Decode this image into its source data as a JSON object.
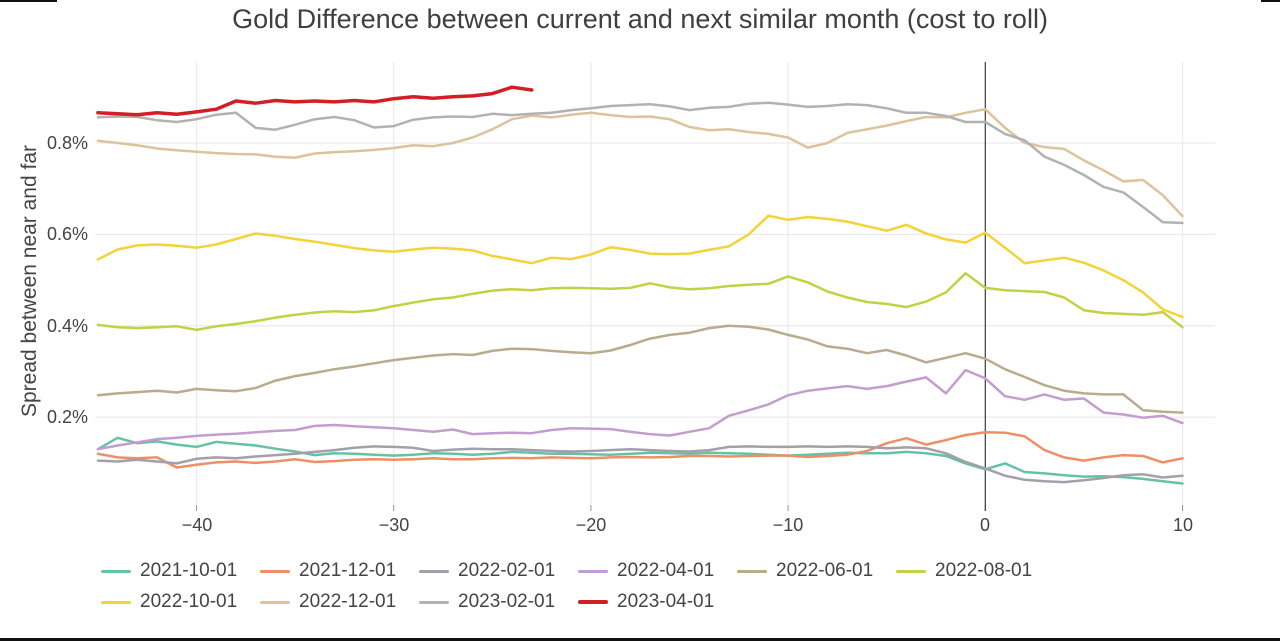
{
  "chart_data": {
    "type": "line",
    "title": "Gold Difference between current and next similar month (cost to roll)",
    "ylabel": "Spread between near and far",
    "xlabel": "",
    "grid": true,
    "legend_position": "bottom",
    "zero_line_x": 0,
    "x_step": 1,
    "x_axis": {
      "ticks": [
        -40,
        -30,
        -20,
        -10,
        0,
        10
      ],
      "labels": [
        "−40",
        "−30",
        "−20",
        "−10",
        "0",
        "10"
      ],
      "range": [
        -45.3,
        11.7
      ]
    },
    "y_axis": {
      "ticks": [
        0.2,
        0.4,
        0.6,
        0.8
      ],
      "labels": [
        "0.2%",
        "0.4%",
        "0.6%",
        "0.8%"
      ],
      "range_pct": [
        0.0,
        0.97
      ]
    },
    "colors": {
      "grid": "#ececec",
      "zero_line": "#3a3a3a",
      "text": "#444444",
      "title": "#3f3f3f"
    },
    "series": [
      {
        "name": "2021-10-01",
        "color": "#66c2a5",
        "width": 2.5,
        "x_start": -45,
        "values": [
          0.13,
          0.155,
          0.143,
          0.147,
          0.14,
          0.135,
          0.146,
          0.142,
          0.138,
          0.131,
          0.125,
          0.117,
          0.121,
          0.12,
          0.118,
          0.116,
          0.118,
          0.121,
          0.12,
          0.118,
          0.12,
          0.124,
          0.122,
          0.12,
          0.12,
          0.119,
          0.118,
          0.12,
          0.122,
          0.121,
          0.12,
          0.122,
          0.121,
          0.12,
          0.118,
          0.116,
          0.118,
          0.12,
          0.122,
          0.121,
          0.121,
          0.124,
          0.121,
          0.115,
          0.099,
          0.086,
          0.099,
          0.08,
          0.077,
          0.073,
          0.07,
          0.071,
          0.069,
          0.065,
          0.06,
          0.055
        ]
      },
      {
        "name": "2021-12-01",
        "color": "#ee9066",
        "width": 2.5,
        "x_start": -45,
        "values": [
          0.12,
          0.112,
          0.11,
          0.112,
          0.09,
          0.096,
          0.101,
          0.103,
          0.1,
          0.103,
          0.108,
          0.102,
          0.104,
          0.107,
          0.108,
          0.107,
          0.108,
          0.11,
          0.108,
          0.108,
          0.11,
          0.111,
          0.11,
          0.112,
          0.111,
          0.11,
          0.112,
          0.113,
          0.112,
          0.113,
          0.115,
          0.115,
          0.114,
          0.115,
          0.116,
          0.116,
          0.113,
          0.115,
          0.118,
          0.126,
          0.143,
          0.154,
          0.14,
          0.15,
          0.161,
          0.167,
          0.166,
          0.158,
          0.128,
          0.112,
          0.105,
          0.112,
          0.117,
          0.115,
          0.101,
          0.11
        ]
      },
      {
        "name": "2022-02-01",
        "color": "#a39fab",
        "width": 2.5,
        "x_start": -45,
        "values": [
          0.105,
          0.103,
          0.107,
          0.103,
          0.099,
          0.109,
          0.112,
          0.11,
          0.114,
          0.117,
          0.12,
          0.124,
          0.128,
          0.133,
          0.136,
          0.135,
          0.133,
          0.126,
          0.129,
          0.131,
          0.13,
          0.13,
          0.128,
          0.126,
          0.125,
          0.126,
          0.128,
          0.13,
          0.128,
          0.126,
          0.125,
          0.128,
          0.135,
          0.136,
          0.135,
          0.135,
          0.136,
          0.135,
          0.136,
          0.135,
          0.132,
          0.134,
          0.132,
          0.121,
          0.102,
          0.088,
          0.072,
          0.063,
          0.06,
          0.058,
          0.062,
          0.067,
          0.073,
          0.075,
          0.068,
          0.072
        ]
      },
      {
        "name": "2022-04-01",
        "color": "#c49dcf",
        "width": 2.5,
        "x_start": -45,
        "values": [
          0.13,
          0.138,
          0.145,
          0.152,
          0.155,
          0.159,
          0.162,
          0.164,
          0.167,
          0.17,
          0.172,
          0.181,
          0.183,
          0.18,
          0.178,
          0.176,
          0.172,
          0.168,
          0.173,
          0.163,
          0.165,
          0.166,
          0.165,
          0.172,
          0.176,
          0.175,
          0.174,
          0.168,
          0.163,
          0.16,
          0.168,
          0.176,
          0.203,
          0.215,
          0.228,
          0.248,
          0.258,
          0.263,
          0.268,
          0.262,
          0.268,
          0.278,
          0.287,
          0.252,
          0.303,
          0.285,
          0.246,
          0.238,
          0.25,
          0.238,
          0.241,
          0.21,
          0.206,
          0.199,
          0.203,
          0.187
        ]
      },
      {
        "name": "2022-06-01",
        "color": "#b9ab8d",
        "width": 2.5,
        "x_start": -45,
        "values": [
          0.248,
          0.252,
          0.255,
          0.258,
          0.254,
          0.262,
          0.259,
          0.257,
          0.264,
          0.28,
          0.29,
          0.297,
          0.305,
          0.311,
          0.318,
          0.325,
          0.33,
          0.335,
          0.338,
          0.336,
          0.345,
          0.35,
          0.349,
          0.345,
          0.342,
          0.34,
          0.346,
          0.358,
          0.372,
          0.38,
          0.385,
          0.395,
          0.4,
          0.398,
          0.392,
          0.38,
          0.37,
          0.355,
          0.35,
          0.34,
          0.347,
          0.335,
          0.32,
          0.33,
          0.34,
          0.328,
          0.305,
          0.288,
          0.27,
          0.258,
          0.252,
          0.25,
          0.25,
          0.215,
          0.212,
          0.21
        ]
      },
      {
        "name": "2022-08-01",
        "color": "#c2d244",
        "width": 2.5,
        "x_start": -45,
        "values": [
          0.402,
          0.397,
          0.395,
          0.397,
          0.399,
          0.391,
          0.399,
          0.404,
          0.41,
          0.418,
          0.424,
          0.429,
          0.432,
          0.43,
          0.434,
          0.443,
          0.451,
          0.458,
          0.462,
          0.47,
          0.477,
          0.48,
          0.478,
          0.482,
          0.483,
          0.482,
          0.481,
          0.483,
          0.493,
          0.484,
          0.48,
          0.482,
          0.487,
          0.49,
          0.492,
          0.508,
          0.495,
          0.475,
          0.462,
          0.452,
          0.448,
          0.441,
          0.453,
          0.473,
          0.515,
          0.483,
          0.478,
          0.476,
          0.474,
          0.462,
          0.434,
          0.428,
          0.426,
          0.424,
          0.43,
          0.397
        ]
      },
      {
        "name": "2022-10-01",
        "color": "#f2d338",
        "width": 2.5,
        "x_start": -45,
        "values": [
          0.545,
          0.567,
          0.576,
          0.578,
          0.575,
          0.571,
          0.578,
          0.59,
          0.602,
          0.597,
          0.59,
          0.584,
          0.577,
          0.57,
          0.565,
          0.562,
          0.567,
          0.571,
          0.569,
          0.565,
          0.553,
          0.545,
          0.537,
          0.549,
          0.546,
          0.556,
          0.572,
          0.566,
          0.558,
          0.557,
          0.558,
          0.566,
          0.574,
          0.6,
          0.641,
          0.632,
          0.638,
          0.634,
          0.628,
          0.618,
          0.608,
          0.621,
          0.602,
          0.589,
          0.582,
          0.604,
          0.571,
          0.537,
          0.543,
          0.549,
          0.538,
          0.521,
          0.5,
          0.473,
          0.436,
          0.419
        ]
      },
      {
        "name": "2022-12-01",
        "color": "#dcc39b",
        "width": 2.5,
        "x_start": -45,
        "values": [
          0.805,
          0.8,
          0.795,
          0.788,
          0.784,
          0.781,
          0.778,
          0.776,
          0.775,
          0.77,
          0.768,
          0.777,
          0.78,
          0.782,
          0.785,
          0.789,
          0.795,
          0.793,
          0.8,
          0.812,
          0.83,
          0.852,
          0.86,
          0.856,
          0.862,
          0.866,
          0.861,
          0.857,
          0.858,
          0.852,
          0.835,
          0.828,
          0.83,
          0.824,
          0.82,
          0.812,
          0.79,
          0.8,
          0.822,
          0.83,
          0.838,
          0.848,
          0.857,
          0.856,
          0.866,
          0.874,
          0.833,
          0.8,
          0.791,
          0.787,
          0.762,
          0.74,
          0.716,
          0.719,
          0.686,
          0.64
        ]
      },
      {
        "name": "2023-02-01",
        "color": "#b2b2b2",
        "width": 2.5,
        "x_start": -45,
        "values": [
          0.856,
          0.858,
          0.857,
          0.85,
          0.846,
          0.852,
          0.862,
          0.866,
          0.833,
          0.829,
          0.84,
          0.852,
          0.857,
          0.85,
          0.834,
          0.837,
          0.851,
          0.856,
          0.858,
          0.857,
          0.864,
          0.861,
          0.864,
          0.866,
          0.872,
          0.876,
          0.881,
          0.883,
          0.885,
          0.88,
          0.872,
          0.877,
          0.879,
          0.886,
          0.888,
          0.884,
          0.879,
          0.881,
          0.885,
          0.883,
          0.876,
          0.866,
          0.866,
          0.859,
          0.846,
          0.846,
          0.82,
          0.806,
          0.77,
          0.752,
          0.73,
          0.704,
          0.692,
          0.66,
          0.627,
          0.625
        ]
      },
      {
        "name": "2023-04-01",
        "color": "#d21f26",
        "width": 3.5,
        "x_start": -45,
        "values": [
          0.866,
          0.864,
          0.862,
          0.866,
          0.863,
          0.868,
          0.874,
          0.892,
          0.887,
          0.893,
          0.89,
          0.892,
          0.89,
          0.893,
          0.89,
          0.897,
          0.901,
          0.898,
          0.901,
          0.903,
          0.908,
          0.922,
          0.916
        ]
      }
    ]
  }
}
